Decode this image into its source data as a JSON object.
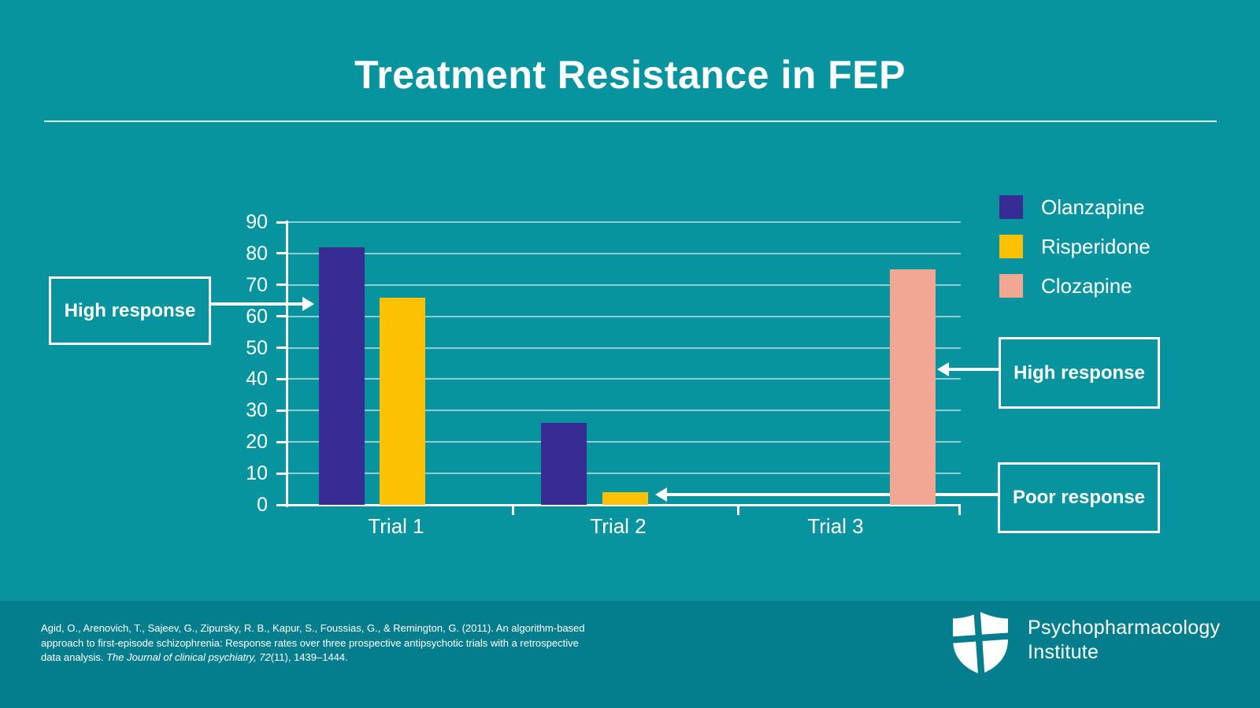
{
  "slide": {
    "title": "Treatment Resistance in FEP"
  },
  "colors": {
    "background": "#08949e",
    "footer_background": "#047e8c",
    "olanzapine": "#372c93",
    "risperidone": "#fdc104",
    "clozapine": "#f1a794",
    "text": "#ffffff",
    "gridline": "rgba(255,255,255,0.55)"
  },
  "chart_data": {
    "type": "bar",
    "categories": [
      "Trial 1",
      "Trial 2",
      "Trial 3"
    ],
    "series": [
      {
        "name": "Olanzapine",
        "color": "#372c93",
        "values": [
          82,
          26,
          null
        ]
      },
      {
        "name": "Risperidone",
        "color": "#fdc104",
        "values": [
          66,
          4,
          null
        ]
      },
      {
        "name": "Clozapine",
        "color": "#f1a794",
        "values": [
          null,
          null,
          75
        ]
      }
    ],
    "title": "",
    "xlabel": "",
    "ylabel": "",
    "ylim": [
      0,
      90
    ],
    "yticks": [
      0,
      10,
      20,
      30,
      40,
      50,
      60,
      70,
      80,
      90
    ],
    "grid": true,
    "legend_position": "top-right",
    "annotations": [
      {
        "label": "High response",
        "target": "Trial 1 bars"
      },
      {
        "label": "High response",
        "target": "Trial 3 clozapine bar"
      },
      {
        "label": "Poor response",
        "target": "Trial 2 risperidone bar"
      }
    ]
  },
  "callouts": {
    "left_high_response": "High response",
    "right_high_response": "High response",
    "poor_response": "Poor response"
  },
  "footer": {
    "citation_line1": "Agid, O., Arenovich, T., Sajeev, G., Zipursky, R. B., Kapur, S., Foussias, G., & Remington, G. (2011). An algorithm-based",
    "citation_line2": "approach to first-episode schizophrenia: Response rates over three prospective antipsychotic trials with a retrospective",
    "citation_line3_prefix": "data analysis. ",
    "citation_line3_italic": "The Journal of clinical psychiatry, 72",
    "citation_line3_suffix": "(11), 1439–1444.",
    "logo_line1": "Psychopharmacology",
    "logo_line2": "Institute"
  }
}
